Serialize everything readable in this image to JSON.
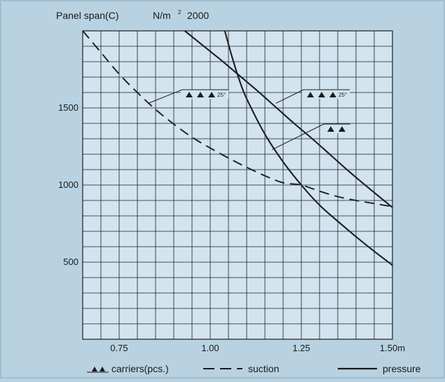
{
  "chart_data": {
    "type": "line",
    "title": "Panel span(C)",
    "unit_label": "N/m",
    "unit_exponent": "2",
    "ymax_label": "2000",
    "x_unit": "m",
    "xlim": [
      0.65,
      1.5
    ],
    "ylim": [
      0,
      2000
    ],
    "xticks": [
      {
        "value": 0.75,
        "label": "0.75"
      },
      {
        "value": 1.0,
        "label": "1.00"
      },
      {
        "value": 1.25,
        "label": "1.25"
      },
      {
        "value": 1.5,
        "label": "1.50m"
      }
    ],
    "yticks": [
      {
        "value": 500,
        "label": "500"
      },
      {
        "value": 1000,
        "label": "1000"
      },
      {
        "value": 1500,
        "label": "1500"
      }
    ],
    "grid": true,
    "series": [
      {
        "name": "suction",
        "style": "dashed",
        "x": [
          0.65,
          0.7,
          0.75,
          0.8,
          0.85,
          0.9,
          0.95,
          1.0,
          1.05,
          1.1,
          1.15,
          1.2,
          1.25,
          1.3,
          1.35,
          1.4,
          1.45,
          1.5
        ],
        "y": [
          2000,
          1860,
          1720,
          1600,
          1490,
          1395,
          1310,
          1240,
          1175,
          1115,
          1060,
          1015,
          1000,
          960,
          925,
          900,
          880,
          860
        ]
      },
      {
        "name": "pressure (3 carriers)",
        "style": "solid",
        "x": [
          0.93,
          0.98,
          1.03,
          1.08,
          1.13,
          1.18,
          1.23,
          1.28,
          1.33,
          1.38,
          1.43,
          1.5
        ],
        "y": [
          2000,
          1905,
          1810,
          1710,
          1610,
          1505,
          1400,
          1300,
          1195,
          1090,
          990,
          855
        ]
      },
      {
        "name": "pressure (2 carriers)",
        "style": "solid",
        "x": [
          1.04,
          1.06,
          1.08,
          1.1,
          1.15,
          1.2,
          1.25,
          1.3,
          1.35,
          1.4,
          1.45,
          1.5
        ],
        "y": [
          2000,
          1830,
          1680,
          1560,
          1330,
          1150,
          1000,
          870,
          765,
          665,
          570,
          480
        ]
      }
    ],
    "annotations": [
      {
        "carriers": 3,
        "angle_label": "25°",
        "points_to_x": 0.83,
        "points_to_y": 1530
      },
      {
        "carriers": 3,
        "angle_label": "25°",
        "points_to_x": 1.18,
        "points_to_y": 1530
      },
      {
        "carriers": 2,
        "angle_label": "",
        "points_to_x": 1.17,
        "points_to_y": 1230
      }
    ],
    "legend": {
      "placement": "bottom",
      "entries": [
        {
          "label": "carriers(pcs.)",
          "symbol": "triangles"
        },
        {
          "label": "suction",
          "symbol": "dashed-line"
        },
        {
          "label": "pressure",
          "symbol": "solid-line"
        }
      ]
    },
    "colors": {
      "background": "#b8d2e2",
      "plot_background": "#d2e4ef",
      "line": "#1e1e1e",
      "grid": "#1e1e1e"
    }
  }
}
